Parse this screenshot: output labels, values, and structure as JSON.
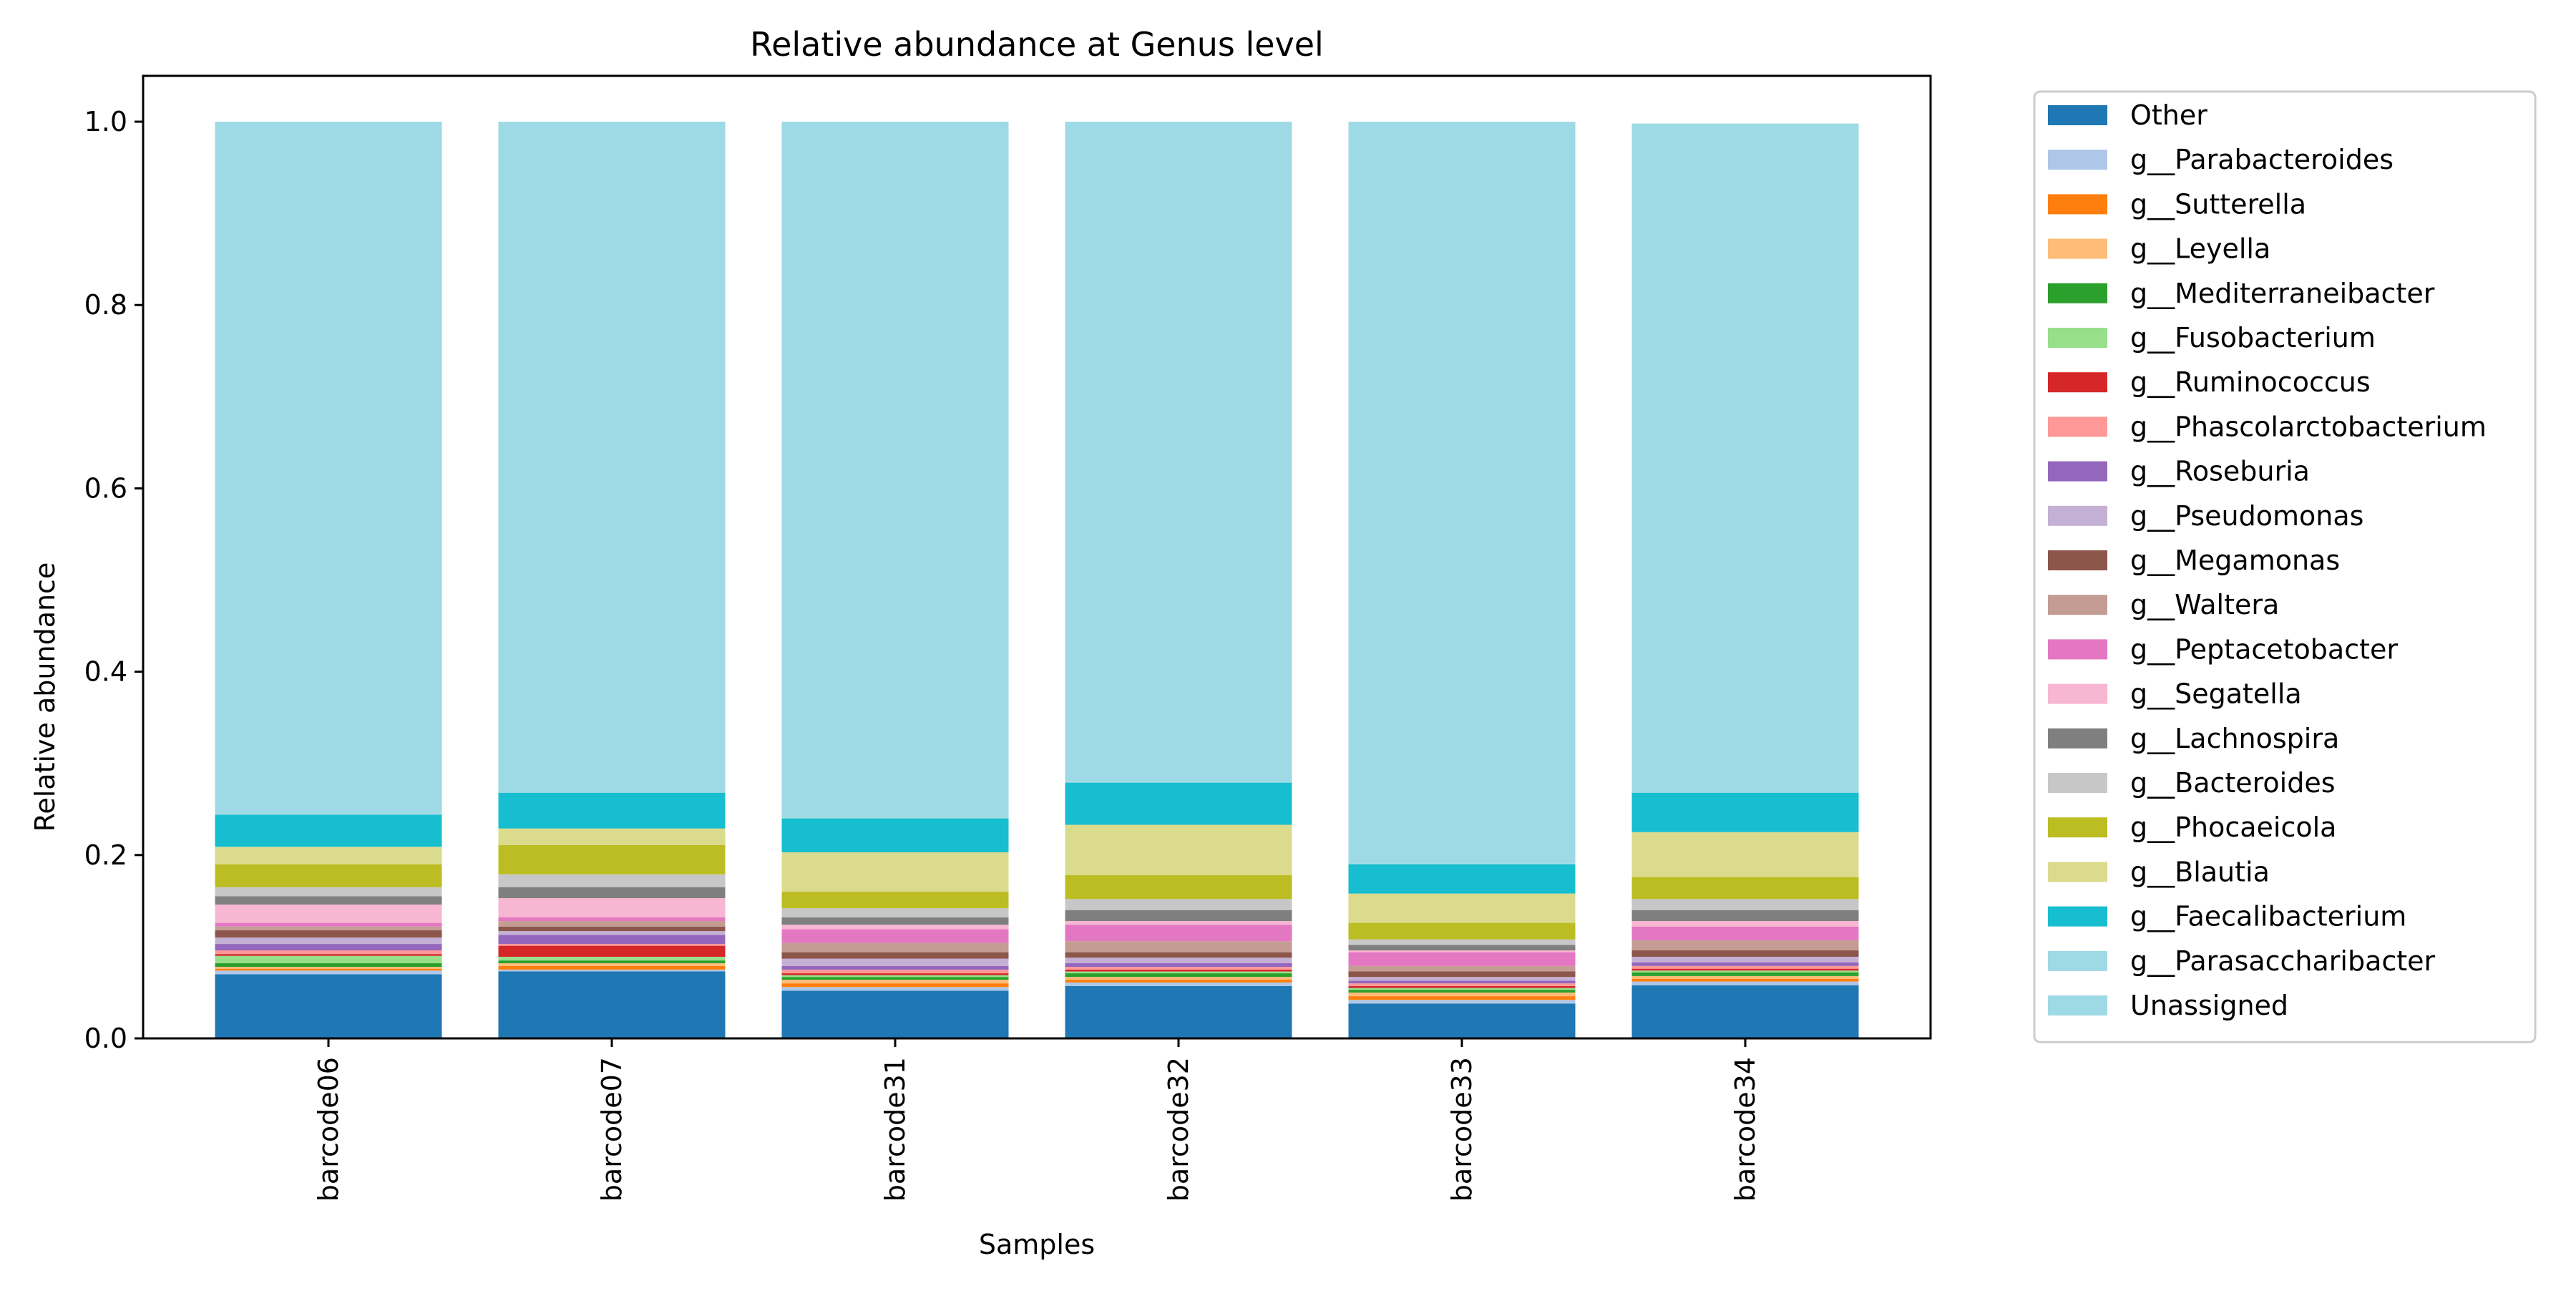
{
  "chart_data": {
    "type": "bar",
    "stacked": true,
    "title": "Relative abundance at Genus level",
    "xlabel": "Samples",
    "ylabel": "Relative abundance",
    "ylim": [
      0,
      1.05
    ],
    "yticks": [
      "0.0",
      "0.2",
      "0.4",
      "0.6",
      "0.8",
      "1.0"
    ],
    "legend_position": "outside-right",
    "categories": [
      "barcode06",
      "barcode07",
      "barcode31",
      "barcode32",
      "barcode33",
      "barcode34"
    ],
    "series": [
      {
        "name": "Other",
        "color": "#1f77b4",
        "values": [
          0.07,
          0.073,
          0.052,
          0.057,
          0.038,
          0.058
        ]
      },
      {
        "name": "g__Parabacteroides",
        "color": "#aec7e8",
        "values": [
          0.004,
          0.002,
          0.004,
          0.004,
          0.004,
          0.004
        ]
      },
      {
        "name": "g__Sutterella",
        "color": "#ff7f0e",
        "values": [
          0.002,
          0.004,
          0.004,
          0.003,
          0.004,
          0.003
        ]
      },
      {
        "name": "g__Leyella",
        "color": "#ffbb78",
        "values": [
          0.002,
          0.003,
          0.004,
          0.003,
          0.004,
          0.003
        ]
      },
      {
        "name": "g__Mediterraneibacter",
        "color": "#2ca02c",
        "values": [
          0.004,
          0.003,
          0.003,
          0.004,
          0.003,
          0.004
        ]
      },
      {
        "name": "g__Fusobacterium",
        "color": "#98df8a",
        "values": [
          0.008,
          0.004,
          0.002,
          0.002,
          0.002,
          0.002
        ]
      },
      {
        "name": "g__Ruminococcus",
        "color": "#d62728",
        "values": [
          0.002,
          0.012,
          0.002,
          0.002,
          0.002,
          0.002
        ]
      },
      {
        "name": "g__Phascolarctobacterium",
        "color": "#ff9896",
        "values": [
          0.004,
          0.002,
          0.004,
          0.003,
          0.003,
          0.003
        ]
      },
      {
        "name": "g__Roseburia",
        "color": "#9467bd",
        "values": [
          0.007,
          0.01,
          0.004,
          0.004,
          0.003,
          0.004
        ]
      },
      {
        "name": "g__Pseudomonas",
        "color": "#c5b0d5",
        "values": [
          0.007,
          0.004,
          0.008,
          0.006,
          0.004,
          0.006
        ]
      },
      {
        "name": "g__Megamonas",
        "color": "#8c564b",
        "values": [
          0.008,
          0.005,
          0.007,
          0.006,
          0.006,
          0.007
        ]
      },
      {
        "name": "g__Waltera",
        "color": "#c49c94",
        "values": [
          0.004,
          0.006,
          0.01,
          0.012,
          0.006,
          0.011
        ]
      },
      {
        "name": "g__Peptacetobacter",
        "color": "#e377c2",
        "values": [
          0.004,
          0.004,
          0.015,
          0.018,
          0.015,
          0.015
        ]
      },
      {
        "name": "g__Segatella",
        "color": "#f7b6d2",
        "values": [
          0.02,
          0.021,
          0.005,
          0.004,
          0.002,
          0.006
        ]
      },
      {
        "name": "g__Lachnospira",
        "color": "#7f7f7f",
        "values": [
          0.009,
          0.012,
          0.008,
          0.012,
          0.006,
          0.012
        ]
      },
      {
        "name": "g__Bacteroides",
        "color": "#c7c7c7",
        "values": [
          0.01,
          0.014,
          0.01,
          0.012,
          0.006,
          0.012
        ]
      },
      {
        "name": "g__Phocaeicola",
        "color": "#bcbd22",
        "values": [
          0.025,
          0.032,
          0.018,
          0.026,
          0.018,
          0.024
        ]
      },
      {
        "name": "g__Blautia",
        "color": "#dbdb8d",
        "values": [
          0.019,
          0.018,
          0.043,
          0.055,
          0.032,
          0.049
        ]
      },
      {
        "name": "g__Faecalibacterium",
        "color": "#17becf",
        "values": [
          0.035,
          0.039,
          0.037,
          0.046,
          0.032,
          0.043
        ]
      },
      {
        "name": "g__Parasaccharibacter",
        "color": "#9edae5",
        "values": [
          0.001,
          0.001,
          0.001,
          0.001,
          0.001,
          0.001
        ]
      },
      {
        "name": "Unassigned",
        "color": "#9edae5",
        "values": [
          0.755,
          0.731,
          0.759,
          0.72,
          0.809,
          0.729
        ]
      }
    ]
  }
}
